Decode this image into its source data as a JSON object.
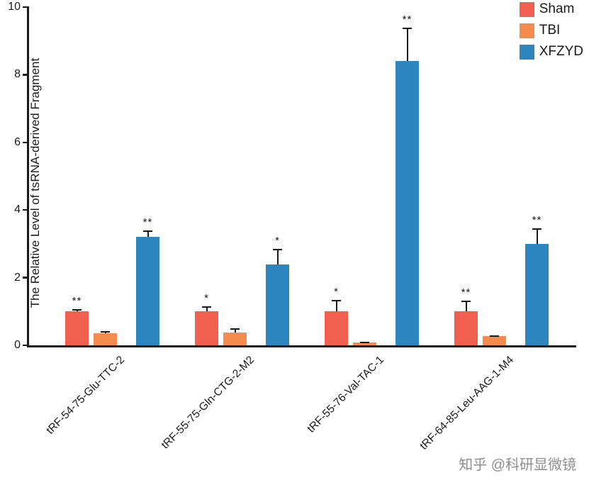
{
  "chart_data": {
    "type": "bar",
    "title": "",
    "xlabel": "",
    "ylabel": "The Relative Level of tsRNA-derived Fragment",
    "ylim": [
      0,
      10
    ],
    "yticks": [
      0,
      2,
      4,
      6,
      8,
      10
    ],
    "grid": false,
    "legend_position": "top-right",
    "categories": [
      "tRF-54-75-Glu-TTC-2",
      "tRF-55-75-Gln-CTG-2-M2",
      "tRF-55-76-Val-TAC-1",
      "tRF-64-85-Leu-AAG-1-M4"
    ],
    "series": [
      {
        "name": "Sham",
        "color": "#F1604F",
        "values": [
          1.0,
          1.0,
          1.0,
          1.0
        ],
        "errors": [
          0.06,
          0.15,
          0.35,
          0.32
        ],
        "significance": [
          "**",
          "*",
          "*",
          "**"
        ]
      },
      {
        "name": "TBI",
        "color": "#F58B4C",
        "values": [
          0.35,
          0.37,
          0.08,
          0.27
        ],
        "errors": [
          0.06,
          0.13,
          0.02,
          0.03
        ],
        "significance": [
          "",
          "",
          "",
          ""
        ]
      },
      {
        "name": "XFZYD",
        "color": "#2E86C0",
        "values": [
          3.2,
          2.4,
          8.4,
          3.0
        ],
        "errors": [
          0.2,
          0.45,
          1.0,
          0.45
        ],
        "significance": [
          "**",
          "*",
          "**",
          "**"
        ]
      }
    ]
  },
  "watermark": "知乎 @科研显微镜"
}
